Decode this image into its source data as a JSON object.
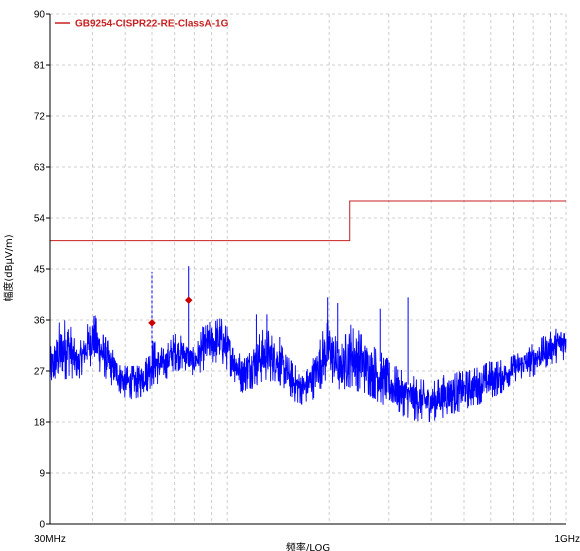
{
  "chart_data": {
    "type": "line",
    "title": "",
    "xlabel": "频率/LOG",
    "ylabel": "幅度(dBμV/m)",
    "xscale": "log",
    "xlim": [
      30,
      1000
    ],
    "ylim": [
      0,
      90
    ],
    "x_unit": "MHz",
    "x_ticks": [
      30,
      1000
    ],
    "x_tick_labels": [
      "30MHz",
      "1GHz"
    ],
    "y_ticks": [
      0,
      9,
      18,
      27,
      36,
      45,
      54,
      63,
      72,
      81,
      90
    ],
    "y_tick_labels": [
      "0",
      "9",
      "18",
      "27",
      "36",
      "45",
      "54",
      "63",
      "72",
      "81",
      "90"
    ],
    "grid": true,
    "legend_position": "top-left",
    "colors": {
      "limit": "#c82020",
      "trace": "#0000ff",
      "marker": "#cc0000",
      "grid": "#c0c0c0"
    },
    "series": [
      {
        "name": "GB9254-CISPR22-RE-ClassA-1G",
        "kind": "limit",
        "x": [
          30,
          230,
          230,
          1000
        ],
        "y": [
          50,
          50,
          57,
          57
        ]
      },
      {
        "kind": "measurement-envelope",
        "x": [
          30,
          32,
          34,
          36,
          38,
          40,
          43,
          46,
          50,
          55,
          60,
          65,
          70,
          75,
          80,
          85,
          90,
          95,
          100,
          110,
          120,
          130,
          140,
          150,
          160,
          170,
          180,
          190,
          200,
          215,
          230,
          250,
          270,
          300,
          330,
          360,
          400,
          450,
          500,
          550,
          600,
          650,
          700,
          800,
          900,
          1000
        ],
        "y_max": [
          31,
          36,
          37,
          31,
          34,
          38,
          34,
          31,
          28,
          28,
          33,
          31,
          34,
          33,
          31,
          35,
          36,
          37,
          35,
          30,
          33,
          35,
          33,
          30,
          28,
          27,
          30,
          34,
          37,
          31,
          36,
          34,
          32,
          29,
          27,
          26,
          25,
          27,
          27,
          28,
          29,
          29,
          30,
          32,
          34,
          36
        ],
        "y_min": [
          23,
          24,
          26,
          25,
          27,
          28,
          26,
          24,
          22,
          22,
          24,
          25,
          27,
          27,
          26,
          27,
          28,
          28,
          27,
          23,
          24,
          25,
          25,
          23,
          21,
          21,
          22,
          24,
          25,
          23,
          24,
          23,
          22,
          20,
          19,
          18,
          18,
          19,
          20,
          21,
          22,
          23,
          25,
          26,
          28,
          29
        ]
      },
      {
        "kind": "spikes",
        "x": [
          60,
          77,
          122,
          131,
          143,
          198,
          212,
          283,
          342
        ],
        "y": [
          44.5,
          45.5,
          37,
          37,
          33,
          40,
          39,
          38,
          40
        ]
      },
      {
        "kind": "markers",
        "x": [
          60,
          77
        ],
        "y": [
          35.5,
          39.5
        ]
      }
    ]
  }
}
